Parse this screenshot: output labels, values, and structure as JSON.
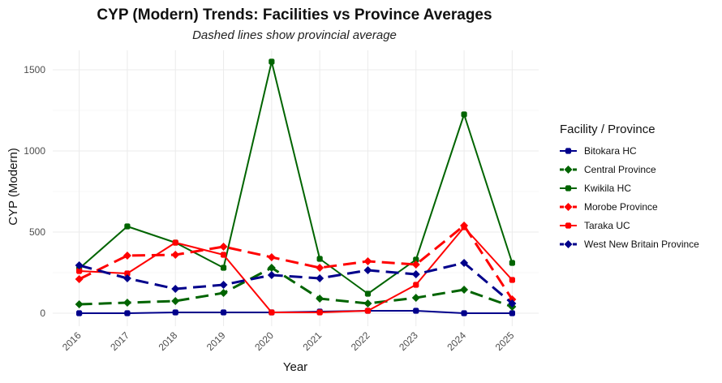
{
  "chart_data": {
    "type": "line",
    "title": "CYP (Modern) Trends: Facilities vs Province Averages",
    "subtitle": "Dashed lines show provincial average",
    "xlabel": "Year",
    "ylabel": "CYP (Modern)",
    "x": [
      2016,
      2017,
      2018,
      2019,
      2020,
      2021,
      2022,
      2023,
      2024,
      2025
    ],
    "x_tick_labels": [
      "2016",
      "2017",
      "2018",
      "2019",
      "2020",
      "2021",
      "2022",
      "2023",
      "2024",
      "2025"
    ],
    "y_ticks": [
      0,
      500,
      1000,
      1500
    ],
    "y_tick_labels": [
      "0",
      "500",
      "1000",
      "1500"
    ],
    "ylim": [
      -80,
      1620
    ],
    "grid": true,
    "legend": {
      "title": "Facility / Province",
      "position": "right"
    },
    "series": [
      {
        "name": "Bitokara HC",
        "color": "#00008B",
        "dashed": false,
        "values": [
          0,
          0,
          5,
          5,
          5,
          10,
          15,
          15,
          0,
          0
        ]
      },
      {
        "name": "Central Province",
        "color": "#006400",
        "dashed": true,
        "values": [
          55,
          65,
          75,
          125,
          280,
          90,
          60,
          95,
          145,
          40
        ]
      },
      {
        "name": "Kwikila HC",
        "color": "#006400",
        "dashed": false,
        "values": [
          275,
          535,
          435,
          280,
          1550,
          335,
          120,
          330,
          1225,
          310
        ]
      },
      {
        "name": "Morobe Province",
        "color": "#FF0000",
        "dashed": true,
        "values": [
          210,
          355,
          360,
          410,
          345,
          280,
          320,
          300,
          540,
          85
        ]
      },
      {
        "name": "Taraka UC",
        "color": "#FF0000",
        "dashed": false,
        "values": [
          260,
          245,
          435,
          360,
          5,
          5,
          15,
          175,
          530,
          205
        ]
      },
      {
        "name": "West New Britain Province",
        "color": "#00008B",
        "dashed": true,
        "values": [
          295,
          215,
          150,
          175,
          235,
          215,
          265,
          240,
          310,
          60
        ]
      }
    ]
  }
}
